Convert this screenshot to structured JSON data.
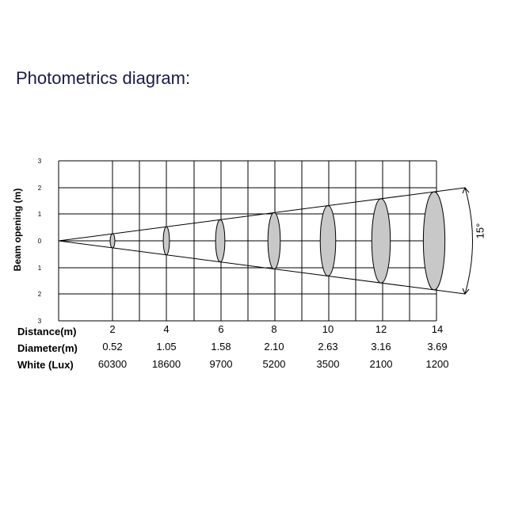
{
  "page": {
    "title": "Photometrics diagram:"
  },
  "diagram": {
    "y_axis_label": "Beam opening (m)",
    "y_tick_labels": [
      "3",
      "2",
      "1",
      "0",
      "1",
      "2",
      "3"
    ],
    "beam_angle_label": "15°",
    "row_labels": {
      "distance": "Distance(m)",
      "diameter": "Diameter(m)",
      "white": "White  (Lux)"
    },
    "columns": [
      {
        "distance": "2",
        "diameter": "0.52",
        "lux": "60300"
      },
      {
        "distance": "4",
        "diameter": "1.05",
        "lux": "18600"
      },
      {
        "distance": "6",
        "diameter": "1.58",
        "lux": "9700"
      },
      {
        "distance": "8",
        "diameter": "2.10",
        "lux": "5200"
      },
      {
        "distance": "10",
        "diameter": "2.63",
        "lux": "3500"
      },
      {
        "distance": "12",
        "diameter": "3.16",
        "lux": "2100"
      },
      {
        "distance": "14",
        "diameter": "3.69",
        "lux": "1200"
      }
    ],
    "colors": {
      "ellipse_fill": "#c8c8c8",
      "line": "#000000",
      "title": "#1a1a4e"
    }
  }
}
